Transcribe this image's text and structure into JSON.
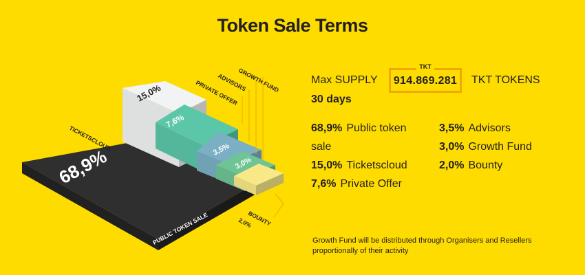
{
  "title": "Token Sale Terms",
  "supply": {
    "label": "Max SUPPLY",
    "currency": "TKT",
    "value": "914.869.281",
    "unit": "TKT TOKENS"
  },
  "duration": "30 days",
  "allocations_list": [
    {
      "pct": "68,9%",
      "label": "Public token",
      "label2": "sale"
    },
    {
      "pct": "15,0%",
      "label": "Ticketscloud"
    },
    {
      "pct": "7,6%",
      "label": "Private Offer"
    },
    {
      "pct": "3,5%",
      "label": "Advisors"
    },
    {
      "pct": "3,0%",
      "label": "Growth Fund"
    },
    {
      "pct": "2,0%",
      "label": "Bounty"
    }
  ],
  "note": "Growth Fund will be distributed through Organisers and Resellers proportionally of their activity",
  "chart_data": {
    "type": "bar",
    "title": "",
    "categories": [
      "PUBLIC TOKEN SALE",
      "TICKETSCLOUD",
      "PRIVATE OFFER",
      "ADVISORS",
      "GROWTH FUND",
      "BOUNTY"
    ],
    "values": [
      68.9,
      15.0,
      7.6,
      3.5,
      3.0,
      2.0
    ],
    "value_labels": [
      "68,9%",
      "15,0%",
      "7,6%",
      "3,5%",
      "3,0%",
      "2,0%"
    ],
    "colors": [
      "#2F2F2F",
      "#F1F3F4",
      "#5BC7A8",
      "#7AAFC4",
      "#6FC495",
      "#F9E887"
    ],
    "legend": "none"
  }
}
